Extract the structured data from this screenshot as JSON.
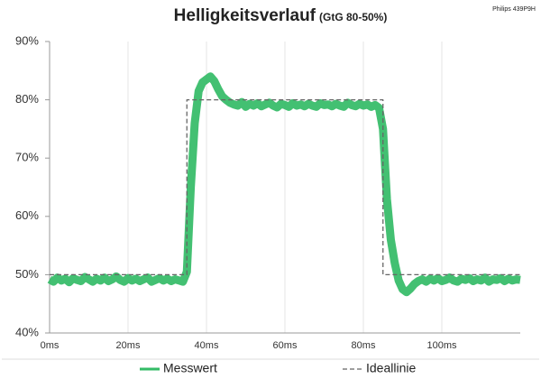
{
  "chart_data": {
    "type": "line",
    "title": "Helligkeitsverlauf",
    "subtitle": "(GtG 80-50%)",
    "annotation": "Philips 439P9H",
    "xlim": [
      0,
      120
    ],
    "xticks": [
      {
        "value": 0,
        "label": "0ms"
      },
      {
        "value": 20,
        "label": "20ms"
      },
      {
        "value": 40,
        "label": "40ms"
      },
      {
        "value": 60,
        "label": "60ms"
      },
      {
        "value": 80,
        "label": "80ms"
      },
      {
        "value": 100,
        "label": "100ms"
      }
    ],
    "ylim": [
      40,
      90
    ],
    "yticks": [
      {
        "value": 40,
        "label": "40%"
      },
      {
        "value": 50,
        "label": "50%"
      },
      {
        "value": 60,
        "label": "60%"
      },
      {
        "value": 70,
        "label": "70%"
      },
      {
        "value": 80,
        "label": "80%"
      },
      {
        "value": 90,
        "label": "90%"
      }
    ],
    "grid": true,
    "legend": "bottom",
    "series": [
      {
        "name": "Messwert",
        "color": "#33bb66",
        "dash": false,
        "x": [
          0,
          1,
          2,
          3,
          4,
          5,
          6,
          7,
          8,
          9,
          10,
          11,
          12,
          13,
          14,
          15,
          16,
          17,
          18,
          19,
          20,
          21,
          22,
          23,
          24,
          25,
          26,
          27,
          28,
          29,
          30,
          31,
          32,
          33,
          34,
          35,
          36,
          37,
          38,
          39,
          40,
          41,
          42,
          43,
          44,
          45,
          46,
          47,
          48,
          49,
          50,
          51,
          52,
          53,
          54,
          55,
          56,
          57,
          58,
          59,
          60,
          61,
          62,
          63,
          64,
          65,
          66,
          67,
          68,
          69,
          70,
          71,
          72,
          73,
          74,
          75,
          76,
          77,
          78,
          79,
          80,
          81,
          82,
          83,
          84,
          85,
          86,
          87,
          88,
          89,
          90,
          91,
          92,
          93,
          94,
          95,
          96,
          97,
          98,
          99,
          100,
          101,
          102,
          103,
          104,
          105,
          106,
          107,
          108,
          109,
          110,
          111,
          112,
          113,
          114,
          115,
          116,
          117,
          118,
          119,
          120
        ],
        "values": [
          49.2,
          48.8,
          49.5,
          49.0,
          49.3,
          48.7,
          49.4,
          49.1,
          48.9,
          49.6,
          49.2,
          48.8,
          49.3,
          49.0,
          49.5,
          48.9,
          49.2,
          49.7,
          49.1,
          48.8,
          49.4,
          49.0,
          49.3,
          48.9,
          49.2,
          49.5,
          48.8,
          49.1,
          49.4,
          49.0,
          49.3,
          48.9,
          49.2,
          49.0,
          48.8,
          50.5,
          65,
          76,
          81.5,
          83,
          83.5,
          84,
          83.2,
          81.8,
          80.6,
          80,
          79.5,
          79.2,
          79.0,
          79.6,
          78.8,
          79.3,
          79.0,
          79.4,
          78.9,
          79.2,
          79.5,
          79.0,
          78.7,
          79.3,
          79.1,
          78.8,
          79.4,
          79.0,
          79.2,
          78.9,
          79.3,
          79.0,
          78.8,
          79.4,
          79.1,
          79.2,
          78.9,
          79.3,
          79.0,
          78.8,
          79.5,
          79.1,
          78.9,
          79.3,
          79.0,
          79.2,
          78.8,
          79.1,
          78.6,
          75,
          63,
          56,
          52,
          49,
          47.5,
          47,
          47.6,
          48.4,
          48.9,
          49.2,
          48.8,
          49.3,
          49.0,
          49.4,
          48.9,
          49.1,
          49.5,
          49.0,
          48.8,
          49.3,
          49.1,
          49.4,
          48.9,
          49.2,
          49.0,
          49.5,
          48.8,
          49.2,
          49.1,
          49.4,
          48.9,
          49.3,
          49.0,
          49.2,
          49.1
        ]
      },
      {
        "name": "Ideallinie",
        "color": "#666666",
        "dash": true,
        "x": [
          0,
          35,
          35,
          85,
          85,
          120
        ],
        "values": [
          50,
          50,
          80,
          80,
          50,
          50
        ]
      }
    ]
  }
}
